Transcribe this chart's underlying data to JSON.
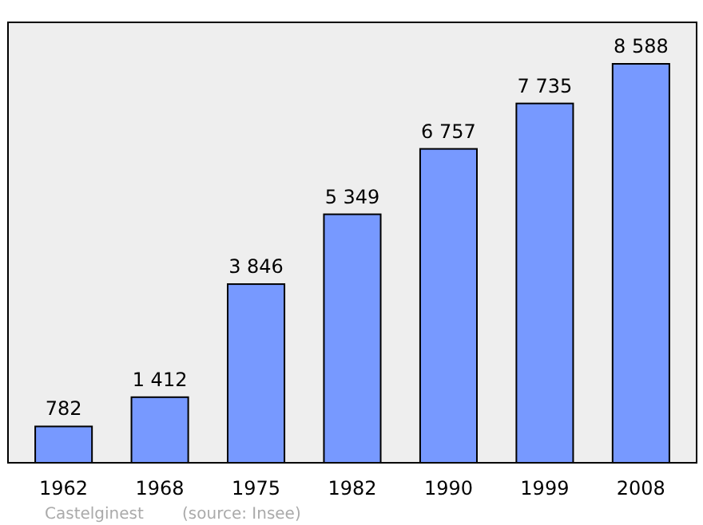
{
  "chart_data": {
    "type": "bar",
    "categories": [
      "1962",
      "1968",
      "1975",
      "1982",
      "1990",
      "1999",
      "2008"
    ],
    "values": [
      782,
      1412,
      3846,
      5349,
      6757,
      7735,
      8588
    ],
    "value_labels": [
      "782",
      "1 412",
      "3 846",
      "5 349",
      "6 757",
      "7 735",
      "8 588"
    ],
    "color": "#7799ff",
    "annotations": [
      "Castelginest",
      "(source: Insee)"
    ]
  }
}
